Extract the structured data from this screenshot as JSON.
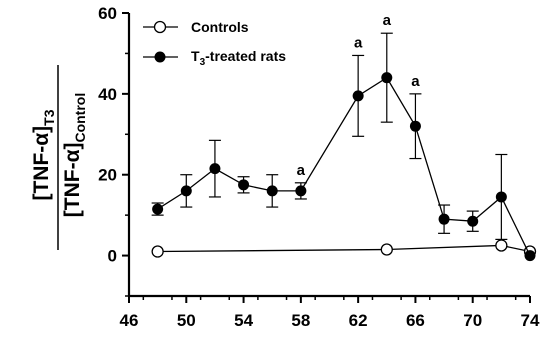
{
  "chart_data": {
    "type": "line",
    "title": "",
    "xlabel": "",
    "ylabel": {
      "numerator": "[TNF-α]",
      "numerator_sub": "T3",
      "denominator": "[TNF-α]",
      "denominator_sub": "Control"
    },
    "xlim": [
      46,
      74
    ],
    "ylim": [
      -10,
      60
    ],
    "x_ticks": [
      46,
      50,
      54,
      58,
      62,
      66,
      70,
      74
    ],
    "y_ticks": [
      0,
      20,
      40,
      60
    ],
    "grid": false,
    "legend_position": "top-left",
    "series": [
      {
        "name": "Controls",
        "marker": "open-circle",
        "points": [
          {
            "x": 48,
            "y": 1
          },
          {
            "x": 64,
            "y": 1.5
          },
          {
            "x": 72,
            "y": 2.5
          },
          {
            "x": 74,
            "y": 1
          }
        ]
      },
      {
        "name_parts": [
          "T",
          "3",
          "-treated rats"
        ],
        "marker": "filled-circle",
        "points": [
          {
            "x": 48,
            "y": 11.5,
            "err": 1.5
          },
          {
            "x": 50,
            "y": 16,
            "err": 4
          },
          {
            "x": 52,
            "y": 21.5,
            "err": 7
          },
          {
            "x": 54,
            "y": 17.5,
            "err": 2
          },
          {
            "x": 56,
            "y": 16,
            "err": 4
          },
          {
            "x": 58,
            "y": 16,
            "err": 2,
            "annotation": "a"
          },
          {
            "x": 62,
            "y": 39.5,
            "err": 10,
            "annotation": "a"
          },
          {
            "x": 64,
            "y": 44,
            "err": 11,
            "annotation": "a"
          },
          {
            "x": 66,
            "y": 32,
            "err": 8,
            "annotation": "a"
          },
          {
            "x": 68,
            "y": 9,
            "err": 3.5
          },
          {
            "x": 70,
            "y": 8.5,
            "err": 2.5
          },
          {
            "x": 72,
            "y": 14.5,
            "err": 10.5
          },
          {
            "x": 74,
            "y": 0
          }
        ]
      }
    ]
  }
}
